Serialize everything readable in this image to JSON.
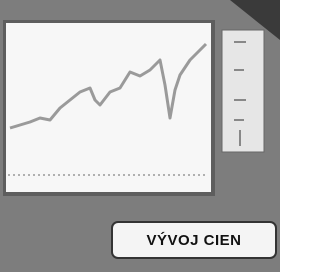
{
  "label": "VÝVOJ CIEN"
}
